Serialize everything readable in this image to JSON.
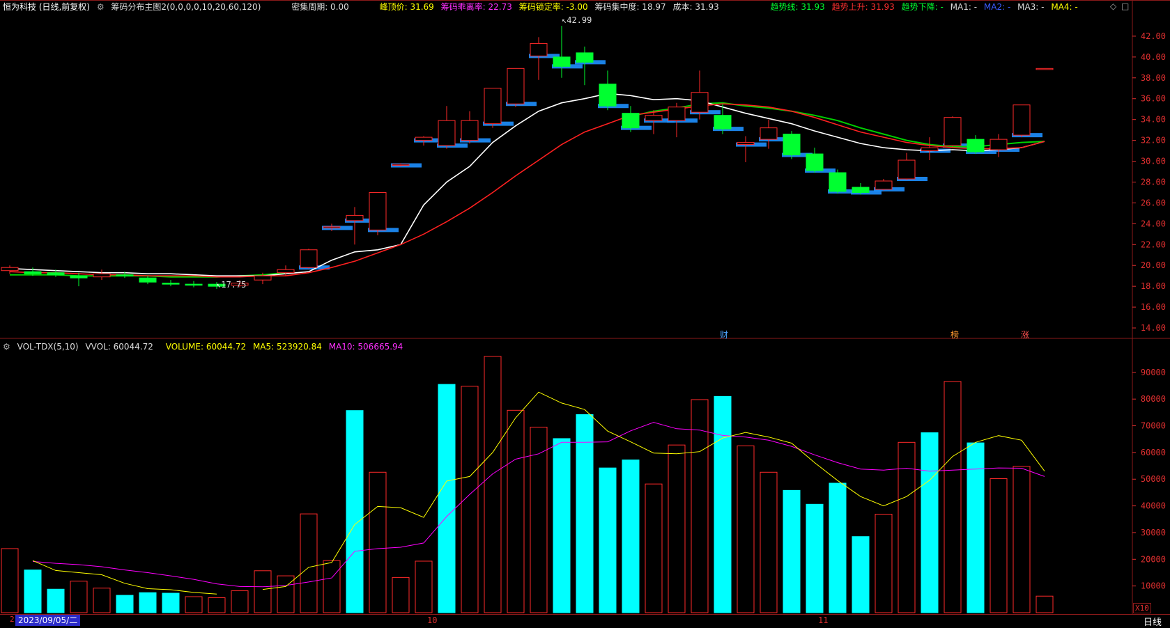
{
  "price_header": {
    "title": "恒为科技 (日线,前复权)",
    "indicator": "筹码分布主图2(0,0,0,0,10,20,60,120)",
    "dense_period": "密集周期: 0.00",
    "peak_price": "峰顶价: 31.69",
    "chip_divergence": "筹码乖离率: 22.73",
    "chip_lock": "筹码锁定率: -3.00",
    "chip_concentration": "筹码集中度: 18.97",
    "cost": "成本: 31.93",
    "trend_line": "趋势线: 31.93",
    "trend_up": "趋势上升: 31.93",
    "trend_down": "趋势下降: -",
    "ma1": "MA1: -",
    "ma2": "MA2: -",
    "ma3": "MA3: -",
    "ma4": "MA4: -"
  },
  "volume_header": {
    "indicator": "VOL-TDX(5,10)",
    "vvol": "VVOL: 60044.72",
    "volume": "VOLUME: 60044.72",
    "ma5": "MA5: 523920.84",
    "ma10": "MA10: 506665.94"
  },
  "annotations": {
    "high": "42.99",
    "low": "17.75"
  },
  "event_marks": [
    {
      "label": "财",
      "color": "#4da3ff"
    },
    {
      "label": "榜",
      "color": "#ff9a30"
    },
    {
      "label": "涨",
      "color": "#ff5050"
    }
  ],
  "volume_unit": "X10",
  "bottom": {
    "date": "2023/09/05/二",
    "month_ticks": [
      "10",
      "11"
    ],
    "period_tab": "日线"
  },
  "colors": {
    "up": "#ff2a2a",
    "down": "#00ff30",
    "vol_down": "#00ffff",
    "chip": "#1e90ff",
    "ma_white": "#ffffff",
    "ma_red": "#ff2020",
    "trend_green": "#00d000",
    "vol_ma5": "#ffff00",
    "vol_ma10": "#ff00ff",
    "axis": "#8b1a1a",
    "tick": "#e03030"
  },
  "chart_data": [
    {
      "type": "candlestick",
      "title": "恒为科技 (日线,前复权)",
      "y_ticks": [
        14,
        16,
        18,
        20,
        22,
        24,
        26,
        28,
        30,
        32,
        34,
        36,
        38,
        40,
        42
      ],
      "ylim": [
        13,
        44
      ],
      "candles": [
        {
          "o": 19.5,
          "c": 19.8,
          "h": 20.0,
          "l": 19.2
        },
        {
          "o": 19.4,
          "c": 19.2,
          "h": 19.8,
          "l": 19.0
        },
        {
          "o": 19.3,
          "c": 19.1,
          "h": 19.6,
          "l": 18.9
        },
        {
          "o": 19.0,
          "c": 18.8,
          "h": 19.3,
          "l": 18.0
        },
        {
          "o": 18.9,
          "c": 19.2,
          "h": 19.6,
          "l": 18.6
        },
        {
          "o": 19.1,
          "c": 19.0,
          "h": 19.4,
          "l": 18.8
        },
        {
          "o": 18.8,
          "c": 18.4,
          "h": 19.0,
          "l": 18.2
        },
        {
          "o": 18.3,
          "c": 18.2,
          "h": 18.6,
          "l": 18.0
        },
        {
          "o": 18.2,
          "c": 18.1,
          "h": 18.5,
          "l": 17.9
        },
        {
          "o": 18.2,
          "c": 18.0,
          "h": 18.4,
          "l": 17.75
        },
        {
          "o": 18.1,
          "c": 18.3,
          "h": 18.6,
          "l": 17.9
        },
        {
          "o": 18.6,
          "c": 19.0,
          "h": 19.3,
          "l": 18.2
        },
        {
          "o": 19.3,
          "c": 19.6,
          "h": 20.0,
          "l": 19.0
        },
        {
          "o": 19.8,
          "c": 21.5,
          "h": 21.6,
          "l": 19.7
        },
        {
          "o": 23.6,
          "c": 23.7,
          "h": 24.0,
          "l": 23.3
        },
        {
          "o": 24.3,
          "c": 24.8,
          "h": 25.6,
          "l": 22.0
        },
        {
          "o": 23.4,
          "c": 27.0,
          "h": 27.0,
          "l": 22.9
        },
        {
          "o": 29.6,
          "c": 29.7,
          "h": 29.8,
          "l": 29.5
        },
        {
          "o": 32.0,
          "c": 32.3,
          "h": 32.4,
          "l": 31.5
        },
        {
          "o": 31.5,
          "c": 33.9,
          "h": 35.3,
          "l": 31.2
        },
        {
          "o": 32.0,
          "c": 33.9,
          "h": 34.8,
          "l": 31.7
        },
        {
          "o": 33.6,
          "c": 37.0,
          "h": 37.0,
          "l": 33.2
        },
        {
          "o": 35.5,
          "c": 38.9,
          "h": 38.9,
          "l": 35.2
        },
        {
          "o": 40.1,
          "c": 41.3,
          "h": 41.9,
          "l": 37.8
        },
        {
          "o": 40.0,
          "c": 39.1,
          "h": 42.99,
          "l": 38.0
        },
        {
          "o": 40.4,
          "c": 39.5,
          "h": 41.0,
          "l": 37.3
        },
        {
          "o": 37.4,
          "c": 35.3,
          "h": 38.7,
          "l": 34.9
        },
        {
          "o": 34.6,
          "c": 33.2,
          "h": 35.3,
          "l": 32.8
        },
        {
          "o": 33.9,
          "c": 34.4,
          "h": 34.9,
          "l": 32.6
        },
        {
          "o": 33.9,
          "c": 35.2,
          "h": 35.6,
          "l": 32.3
        },
        {
          "o": 34.7,
          "c": 36.6,
          "h": 38.7,
          "l": 34.0
        },
        {
          "o": 34.4,
          "c": 33.1,
          "h": 35.5,
          "l": 32.6
        },
        {
          "o": 31.6,
          "c": 31.8,
          "h": 32.4,
          "l": 29.9
        },
        {
          "o": 32.1,
          "c": 33.2,
          "h": 34.0,
          "l": 31.2
        },
        {
          "o": 32.6,
          "c": 30.6,
          "h": 32.9,
          "l": 30.2
        },
        {
          "o": 30.7,
          "c": 29.1,
          "h": 31.3,
          "l": 28.9
        },
        {
          "o": 28.9,
          "c": 27.1,
          "h": 29.2,
          "l": 26.9
        },
        {
          "o": 27.5,
          "c": 27.0,
          "h": 27.9,
          "l": 26.8
        },
        {
          "o": 27.3,
          "c": 28.1,
          "h": 28.3,
          "l": 27.2
        },
        {
          "o": 28.3,
          "c": 30.1,
          "h": 30.8,
          "l": 28.2
        },
        {
          "o": 31.0,
          "c": 31.3,
          "h": 32.3,
          "l": 30.1
        },
        {
          "o": 31.5,
          "c": 34.2,
          "h": 34.3,
          "l": 31.4
        },
        {
          "o": 32.1,
          "c": 30.9,
          "h": 32.5,
          "l": 30.7
        },
        {
          "o": 31.1,
          "c": 32.1,
          "h": 32.6,
          "l": 30.4
        },
        {
          "o": 32.5,
          "c": 35.4,
          "h": 35.4,
          "l": 32.3
        },
        {
          "o": 38.9,
          "c": 38.9,
          "h": 38.9,
          "l": 38.9
        }
      ],
      "ma_white": [
        19.7,
        19.6,
        19.5,
        19.4,
        19.3,
        19.3,
        19.2,
        19.2,
        19.1,
        19.0,
        19.0,
        19.0,
        19.2,
        19.4,
        20.5,
        21.3,
        21.5,
        22.0,
        25.8,
        28.0,
        29.5,
        31.8,
        33.4,
        34.8,
        35.6,
        36.0,
        36.5,
        36.3,
        35.9,
        36.0,
        35.8,
        35.2,
        34.6,
        34.1,
        33.6,
        32.9,
        32.3,
        31.7,
        31.3,
        31.1,
        31.0,
        31.1,
        31.0,
        31.1,
        31.3,
        31.9
      ],
      "ma_red": [
        19.4,
        19.3,
        19.3,
        19.2,
        19.1,
        19.1,
        19.0,
        19.0,
        19.0,
        18.9,
        18.9,
        19.0,
        19.0,
        19.3,
        19.8,
        20.4,
        21.2,
        22.0,
        23.0,
        24.2,
        25.5,
        27.0,
        28.6,
        30.1,
        31.6,
        32.8,
        33.6,
        34.4,
        34.7,
        35.0,
        35.3,
        35.5,
        35.4,
        35.2,
        34.8,
        34.2,
        33.5,
        32.8,
        32.3,
        31.8,
        31.5,
        31.3,
        31.2,
        31.2,
        31.3,
        31.9
      ],
      "trend_green": [
        19.1,
        19.1,
        19.1,
        19.0,
        19.0,
        19.0,
        19.0,
        18.9,
        18.9,
        18.9,
        19.0,
        19.1,
        19.3,
        null,
        null,
        null,
        null,
        null,
        null,
        null,
        null,
        null,
        null,
        null,
        null,
        null,
        null,
        34.3,
        34.8,
        35.1,
        35.5,
        35.6,
        35.3,
        35.1,
        34.8,
        34.4,
        33.9,
        33.2,
        32.6,
        32.0,
        31.6,
        31.4,
        31.4,
        31.6,
        31.8,
        31.9
      ]
    },
    {
      "type": "bar",
      "title": "VOL-TDX(5,10)",
      "y_ticks": [
        10000,
        20000,
        30000,
        40000,
        50000,
        60000,
        70000,
        80000,
        90000
      ],
      "ylim": [
        0,
        97000
      ],
      "values": [
        24000,
        16000,
        8800,
        11800,
        9200,
        6500,
        7500,
        7300,
        6000,
        5600,
        8200,
        15700,
        13800,
        37000,
        19500,
        75700,
        52600,
        13200,
        19300,
        85500,
        84800,
        96000,
        75800,
        69500,
        65200,
        74200,
        54200,
        57200,
        48200,
        62800,
        79800,
        81000,
        62500,
        52600,
        45800,
        40600,
        48500,
        28500,
        36900,
        63800,
        67400,
        86600,
        63600,
        50200,
        54800,
        6200
      ],
      "up": [
        true,
        false,
        false,
        true,
        true,
        false,
        false,
        false,
        true,
        true,
        true,
        true,
        true,
        true,
        true,
        false,
        true,
        true,
        true,
        false,
        true,
        true,
        true,
        true,
        false,
        false,
        false,
        false,
        true,
        true,
        true,
        false,
        true,
        true,
        false,
        false,
        false,
        false,
        true,
        true,
        false,
        true,
        false,
        true,
        true,
        true
      ],
      "ma5": [
        null,
        19500,
        15800,
        15000,
        14200,
        11000,
        9000,
        8600,
        7600,
        7000,
        null,
        8700,
        9800,
        17000,
        18800,
        33000,
        39800,
        39300,
        35700,
        49300,
        51000,
        60000,
        73000,
        82600,
        78500,
        76100,
        68000,
        64000,
        59800,
        59500,
        60300,
        65400,
        67500,
        65800,
        63500,
        56200,
        49500,
        43500,
        40000,
        43500,
        49600,
        58500,
        63800,
        66300,
        64600,
        53000
      ],
      "ma10": [
        null,
        19200,
        18500,
        18000,
        17200,
        16000,
        15000,
        13800,
        12500,
        10800,
        9800,
        9700,
        10200,
        11500,
        13000,
        23000,
        24000,
        24500,
        26100,
        36000,
        44300,
        52000,
        57500,
        59500,
        63800,
        63800,
        64000,
        68100,
        71300,
        68900,
        68400,
        66400,
        65800,
        64600,
        62300,
        59100,
        56200,
        53800,
        53400,
        54100,
        53000,
        53400,
        53800,
        54200,
        54100,
        51000
      ]
    }
  ]
}
